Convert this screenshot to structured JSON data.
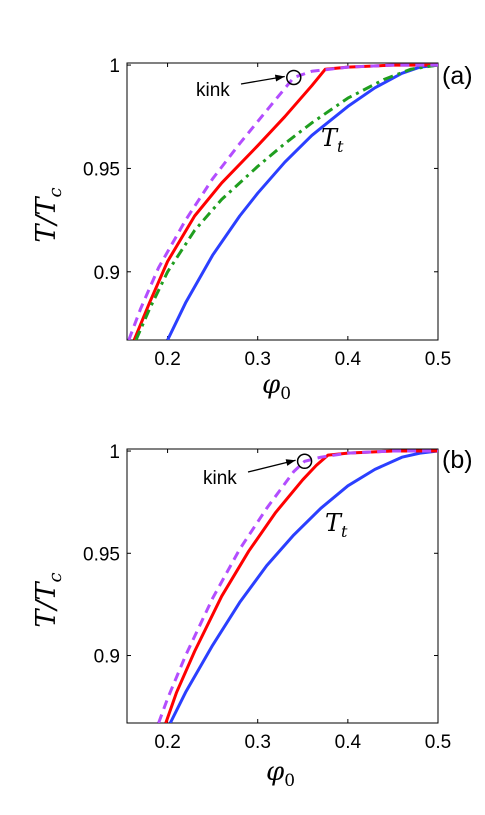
{
  "chart_data": [
    {
      "type": "line",
      "panel_label": "(a)",
      "xlabel": "φ0",
      "ylabel": "T/Tc",
      "xlim": [
        0.155,
        0.5
      ],
      "ylim": [
        0.867,
        1.001
      ],
      "xticks": [
        "0.2",
        "0.3",
        "0.4",
        "0.5"
      ],
      "yticks": [
        "0.9",
        "0.95",
        "1"
      ],
      "xtick_values": [
        0.2,
        0.3,
        0.4,
        0.5
      ],
      "ytick_values": [
        0.9,
        0.95,
        1.0
      ],
      "annotations": {
        "kink": "kink",
        "Tt": "Tt",
        "kink_point": [
          0.34,
          0.994
        ]
      },
      "series": [
        {
          "color": "#2b3fff",
          "style": "solid",
          "x": [
            0.2,
            0.22,
            0.25,
            0.28,
            0.3,
            0.33,
            0.36,
            0.4,
            0.43,
            0.46,
            0.48,
            0.5
          ],
          "y": [
            0.867,
            0.885,
            0.908,
            0.927,
            0.938,
            0.953,
            0.966,
            0.98,
            0.989,
            0.996,
            0.999,
            1.0
          ]
        },
        {
          "color": "#ff0000",
          "style": "solid",
          "x": [
            0.163,
            0.18,
            0.2,
            0.23,
            0.26,
            0.3,
            0.33,
            0.36,
            0.375,
            0.4,
            0.45,
            0.5
          ],
          "y": [
            0.867,
            0.885,
            0.905,
            0.927,
            0.943,
            0.961,
            0.975,
            0.99,
            0.998,
            0.999,
            1.0,
            1.0
          ]
        },
        {
          "color": "#1f9e1f",
          "style": "dashdot",
          "x": [
            0.165,
            0.18,
            0.2,
            0.23,
            0.26,
            0.3,
            0.33,
            0.36,
            0.4,
            0.44,
            0.47,
            0.5
          ],
          "y": [
            0.867,
            0.882,
            0.9,
            0.92,
            0.935,
            0.951,
            0.962,
            0.972,
            0.984,
            0.993,
            0.998,
            1.0
          ]
        },
        {
          "color": "#b34dff",
          "style": "dashed",
          "x": [
            0.157,
            0.17,
            0.19,
            0.22,
            0.25,
            0.28,
            0.31,
            0.34,
            0.36,
            0.4,
            0.45,
            0.5
          ],
          "y": [
            0.867,
            0.882,
            0.902,
            0.925,
            0.945,
            0.962,
            0.978,
            0.994,
            0.997,
            0.999,
            1.0,
            1.0
          ]
        }
      ]
    },
    {
      "type": "line",
      "panel_label": "(b)",
      "xlabel": "φ0",
      "ylabel": "T/Tc",
      "xlim": [
        0.155,
        0.5
      ],
      "ylim": [
        0.867,
        1.001
      ],
      "xticks": [
        "0.2",
        "0.3",
        "0.4",
        "0.5"
      ],
      "yticks": [
        "0.9",
        "0.95",
        "1"
      ],
      "xtick_values": [
        0.2,
        0.3,
        0.4,
        0.5
      ],
      "ytick_values": [
        0.9,
        0.95,
        1.0
      ],
      "annotations": {
        "kink": "kink",
        "Tt": "Tt",
        "kink_point": [
          0.352,
          0.995
        ]
      },
      "series": [
        {
          "color": "#2b3fff",
          "style": "solid",
          "x": [
            0.203,
            0.22,
            0.25,
            0.28,
            0.31,
            0.34,
            0.37,
            0.4,
            0.43,
            0.46,
            0.48,
            0.5
          ],
          "y": [
            0.867,
            0.882,
            0.905,
            0.926,
            0.944,
            0.959,
            0.972,
            0.983,
            0.991,
            0.997,
            0.999,
            1.0
          ]
        },
        {
          "color": "#ff0000",
          "style": "solid",
          "x": [
            0.198,
            0.21,
            0.23,
            0.26,
            0.29,
            0.32,
            0.35,
            0.365,
            0.378,
            0.4,
            0.45,
            0.5
          ],
          "y": [
            0.867,
            0.882,
            0.902,
            0.929,
            0.951,
            0.97,
            0.986,
            0.993,
            0.998,
            0.999,
            1.0,
            1.0
          ]
        },
        {
          "color": "#b34dff",
          "style": "dashed",
          "x": [
            0.19,
            0.2,
            0.22,
            0.25,
            0.28,
            0.31,
            0.34,
            0.352,
            0.37,
            0.4,
            0.45,
            0.5
          ],
          "y": [
            0.867,
            0.879,
            0.9,
            0.928,
            0.952,
            0.972,
            0.99,
            0.995,
            0.997,
            0.999,
            1.0,
            1.0
          ]
        }
      ]
    }
  ]
}
